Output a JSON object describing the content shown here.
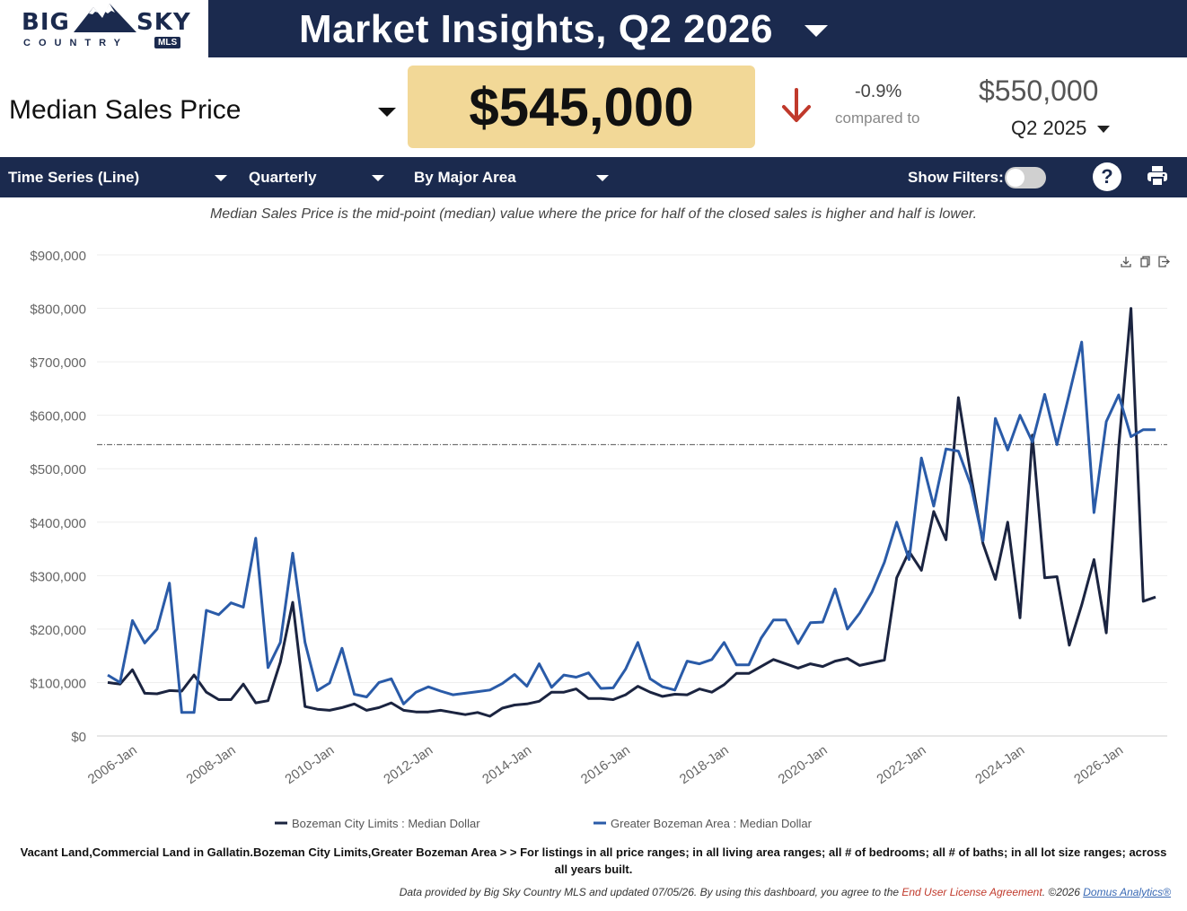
{
  "header": {
    "logo_big": "BIG",
    "logo_sky": "SKY",
    "logo_country": "COUNTRY",
    "logo_mls": "MLS",
    "title": "Market Insights,  Q2 2026"
  },
  "metric": {
    "label": "Median Sales Price",
    "value": "$545,000",
    "change_pct": "-0.9%",
    "compared_label": "compared to",
    "prior_value": "$550,000",
    "prior_period": "Q2 2025"
  },
  "toolbar": {
    "chart_type": "Time Series (Line)",
    "interval": "Quarterly",
    "grouping": "By Major Area",
    "show_filters": "Show Filters:",
    "help_glyph": "?"
  },
  "description": "Median Sales Price is the mid-point (median) value where the price for half of the closed sales is higher and half is lower.",
  "chart_data": {
    "type": "line",
    "ylim": [
      0,
      900000
    ],
    "y_ticks": [
      "$0",
      "$100,000",
      "$200,000",
      "$300,000",
      "$400,000",
      "$500,000",
      "$600,000",
      "$700,000",
      "$800,000",
      "$900,000"
    ],
    "x_ticks": [
      "2006-Jan",
      "2008-Jan",
      "2010-Jan",
      "2012-Jan",
      "2014-Jan",
      "2016-Jan",
      "2018-Jan",
      "2020-Jan",
      "2022-Jan",
      "2024-Jan",
      "2026-Jan"
    ],
    "x_start": "2005-Q3",
    "reference_value": 545000,
    "grid": true,
    "legend_position": "bottom",
    "series": [
      {
        "name": "Bozeman City Limits : Median Dollar",
        "color": "#1b2440",
        "values": [
          100000,
          97000,
          124000,
          80000,
          79000,
          85000,
          84000,
          114000,
          82000,
          68000,
          68000,
          97000,
          62000,
          66000,
          138000,
          250000,
          55000,
          50000,
          48000,
          53000,
          60000,
          48000,
          53000,
          62000,
          48000,
          45000,
          45000,
          48000,
          44000,
          40000,
          44000,
          37000,
          52000,
          58000,
          60000,
          65000,
          82000,
          82000,
          88000,
          70000,
          70000,
          68000,
          77000,
          93000,
          82000,
          74000,
          78000,
          77000,
          88000,
          82000,
          96000,
          117000,
          117000,
          130000,
          143000,
          135000,
          127000,
          135000,
          130000,
          140000,
          145000,
          132000,
          137000,
          142000,
          296000,
          345000,
          310000,
          420000,
          367000,
          633000,
          490000,
          360000,
          293000,
          400000,
          221000,
          563000,
          296000,
          298000,
          170000,
          245000,
          330000,
          193000,
          540000,
          800000,
          252000,
          260000
        ]
      },
      {
        "name": "Greater Bozeman Area : Median Dollar",
        "color": "#2a5ba8",
        "values": [
          114000,
          100000,
          216000,
          174000,
          200000,
          286000,
          44000,
          44000,
          235000,
          227000,
          249000,
          241000,
          370000,
          128000,
          175000,
          342000,
          175000,
          85000,
          99000,
          164000,
          78000,
          73000,
          100000,
          107000,
          60000,
          82000,
          92000,
          84000,
          77000,
          80000,
          83000,
          86000,
          98000,
          115000,
          93000,
          135000,
          91000,
          114000,
          110000,
          118000,
          89000,
          90000,
          125000,
          175000,
          107000,
          92000,
          86000,
          140000,
          135000,
          143000,
          175000,
          133000,
          133000,
          183000,
          217000,
          217000,
          173000,
          212000,
          213000,
          275000,
          200000,
          230000,
          270000,
          325000,
          400000,
          330000,
          520000,
          430000,
          537000,
          533000,
          470000,
          365000,
          594000,
          535000,
          600000,
          550000,
          639000,
          545000,
          640000,
          737000,
          418000,
          588000,
          638000,
          560000,
          573000,
          573000
        ]
      }
    ]
  },
  "footnote": "Vacant Land,Commercial Land in Gallatin.Bozeman City Limits,Greater Bozeman Area > > For listings in all price ranges; in all living area ranges; all # of bedrooms; all # of baths; in all lot size ranges; across all years built.",
  "credits": {
    "prefix": "Data provided by Big Sky Country MLS and updated 07/05/26.  By using this dashboard, you agree to the ",
    "eula": "End User License Agreement",
    "middle": ".  ©2026 ",
    "domus": "Domus Analytics®"
  }
}
